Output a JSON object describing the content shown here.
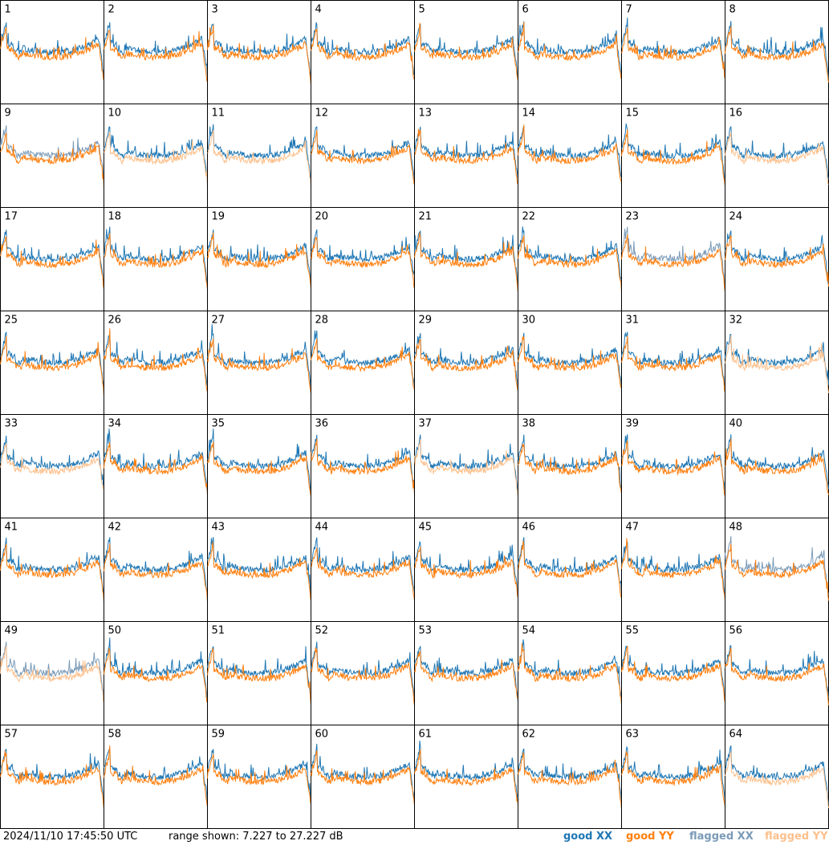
{
  "chart_data": {
    "type": "line",
    "panels": [
      "1",
      "2",
      "3",
      "4",
      "5",
      "6",
      "7",
      "8",
      "9",
      "10",
      "11",
      "12",
      "13",
      "14",
      "15",
      "16",
      "17",
      "18",
      "19",
      "20",
      "21",
      "22",
      "23",
      "24",
      "25",
      "26",
      "27",
      "28",
      "29",
      "30",
      "31",
      "32",
      "33",
      "34",
      "35",
      "36",
      "37",
      "38",
      "39",
      "40",
      "41",
      "42",
      "43",
      "44",
      "45",
      "46",
      "47",
      "48",
      "49",
      "50",
      "51",
      "52",
      "53",
      "54",
      "55",
      "56",
      "57",
      "58",
      "59",
      "60",
      "61",
      "62",
      "63",
      "64"
    ],
    "ylim": [
      7.227,
      27.227
    ],
    "series": [
      {
        "name": "good XX",
        "color": "#1f77b4"
      },
      {
        "name": "good YY",
        "color": "#ff7f0e"
      },
      {
        "name": "flagged XX",
        "color": "#7b9bb8"
      },
      {
        "name": "flagged YY",
        "color": "#fdc08c"
      }
    ],
    "flagged_xx_panels": [
      "9",
      "23",
      "48",
      "49"
    ],
    "flagged_yy_panels": [
      "10",
      "11",
      "16",
      "32",
      "33",
      "37",
      "49",
      "64"
    ]
  },
  "footer": {
    "timestamp": "2024/11/10 17:45:50 UTC",
    "range_text": "range shown: 7.227 to 27.227 dB"
  },
  "legend": {
    "good_xx": "good XX",
    "good_yy": "good YY",
    "flagged_xx": "flagged XX",
    "flagged_yy": "flagged YY"
  }
}
